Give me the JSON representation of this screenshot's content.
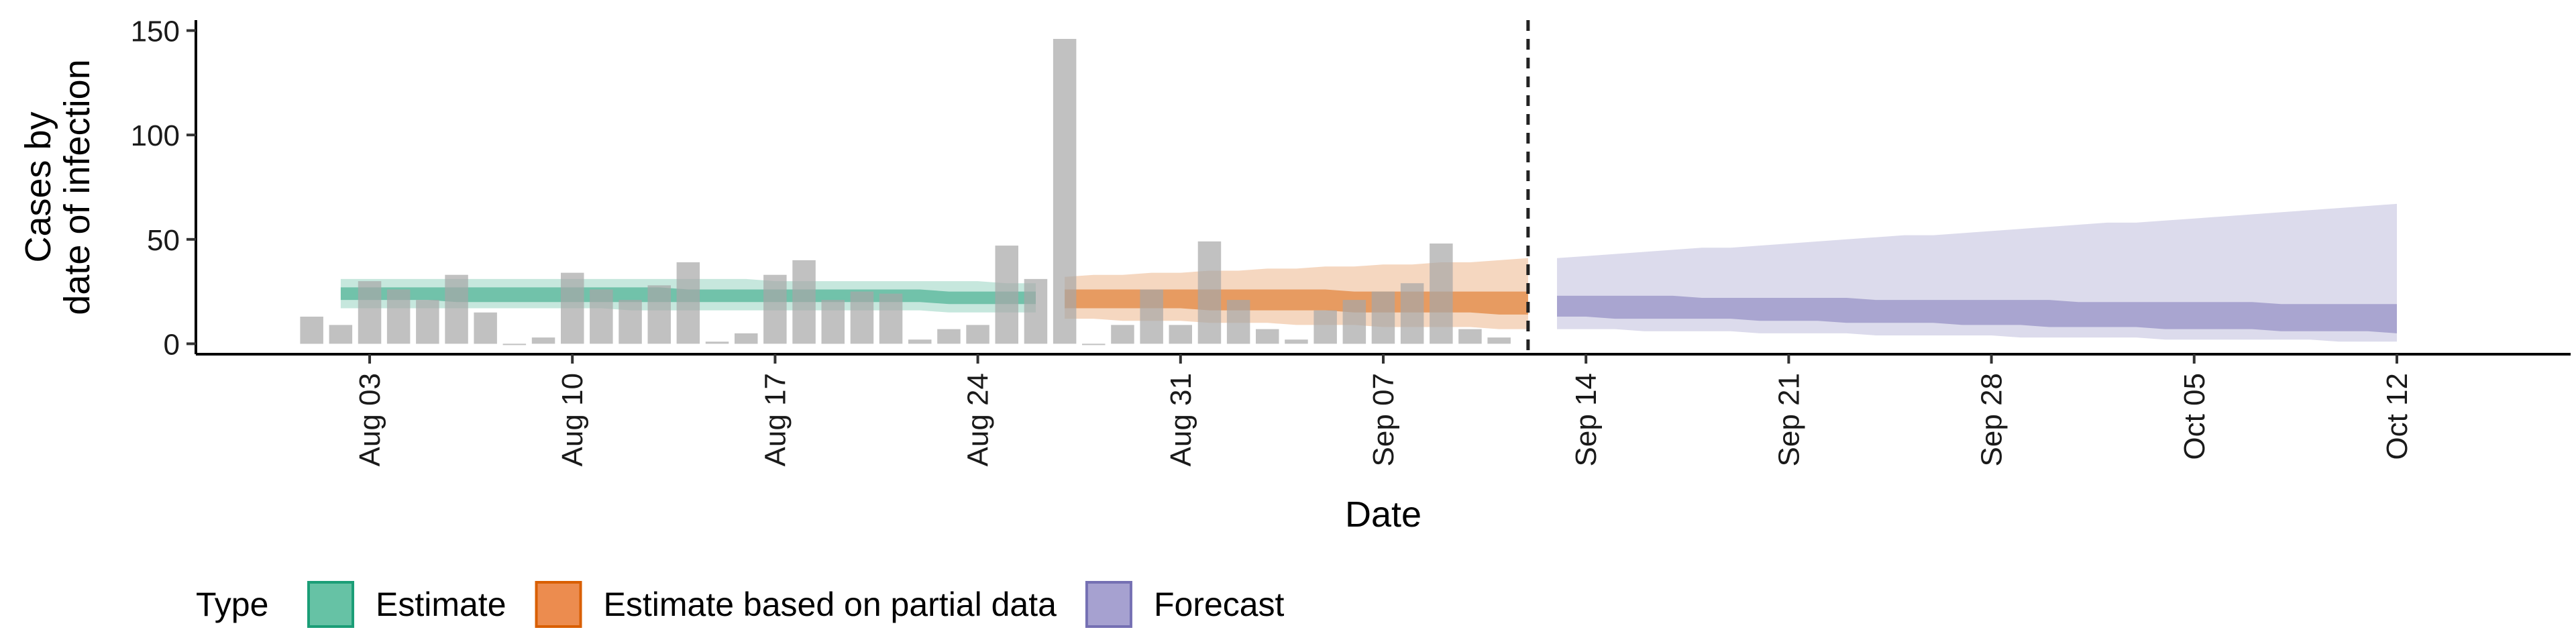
{
  "chart_data": {
    "type": "bar",
    "xlabel": "Date",
    "ylabel": [
      "Cases by",
      "date of infection"
    ],
    "ylim": [
      -5,
      155
    ],
    "x_domain": [
      "2020-07-28",
      "2020-10-18"
    ],
    "yticks": [
      0,
      50,
      100,
      150
    ],
    "xticks": [
      {
        "date": "2020-08-03",
        "label": "Aug 03"
      },
      {
        "date": "2020-08-10",
        "label": "Aug 10"
      },
      {
        "date": "2020-08-17",
        "label": "Aug 17"
      },
      {
        "date": "2020-08-24",
        "label": "Aug 24"
      },
      {
        "date": "2020-08-31",
        "label": "Aug 31"
      },
      {
        "date": "2020-09-07",
        "label": "Sep 07"
      },
      {
        "date": "2020-09-14",
        "label": "Sep 14"
      },
      {
        "date": "2020-09-21",
        "label": "Sep 21"
      },
      {
        "date": "2020-09-28",
        "label": "Sep 28"
      },
      {
        "date": "2020-10-05",
        "label": "Oct 05"
      },
      {
        "date": "2020-10-12",
        "label": "Oct 12"
      }
    ],
    "observed_cases": {
      "start_date": "2020-08-01",
      "values": [
        13,
        9,
        30,
        26,
        21,
        33,
        15,
        0,
        3,
        34,
        26,
        21,
        28,
        39,
        1,
        5,
        33,
        40,
        21,
        25,
        24,
        2,
        7,
        9,
        47,
        31,
        146,
        0,
        9,
        26,
        9,
        49,
        21,
        7,
        2,
        16,
        21,
        25,
        29,
        48,
        7,
        3
      ]
    },
    "forecast_start_line": "2020-09-12",
    "grid": false,
    "legend": {
      "position": "bottom",
      "title": "Type",
      "items": [
        {
          "label": "Estimate",
          "fill": "#66c2a5",
          "stroke": "#1b9e77"
        },
        {
          "label": "Estimate based on partial data",
          "fill": "#ec8c4f",
          "stroke": "#d95f02"
        },
        {
          "label": "Forecast",
          "fill": "#a6a1d0",
          "stroke": "#7570b3"
        }
      ]
    },
    "series": [
      {
        "name": "Estimate",
        "color": "#1b9e77",
        "start_date": "2020-08-02",
        "end_date": "2020-08-26",
        "inner_lower": [
          21,
          21,
          21,
          21,
          20,
          20,
          20,
          20,
          20,
          20,
          20,
          20,
          20,
          20,
          20,
          20,
          20,
          20,
          20,
          20,
          20,
          19,
          19,
          19,
          19
        ],
        "inner_upper": [
          27,
          27,
          27,
          27,
          27,
          27,
          27,
          27,
          27,
          27,
          27,
          27,
          26,
          26,
          26,
          26,
          26,
          26,
          26,
          26,
          26,
          25,
          25,
          25,
          25
        ],
        "outer_lower": [
          17,
          17,
          17,
          17,
          17,
          17,
          17,
          17,
          17,
          17,
          16,
          16,
          16,
          16,
          16,
          16,
          16,
          16,
          16,
          16,
          16,
          15,
          15,
          15,
          15
        ],
        "outer_upper": [
          31,
          31,
          31,
          31,
          31,
          31,
          31,
          31,
          31,
          31,
          31,
          31,
          31,
          31,
          31,
          30,
          30,
          30,
          30,
          30,
          30,
          30,
          30,
          29,
          29
        ]
      },
      {
        "name": "Estimate based on partial data",
        "color": "#d95f02",
        "start_date": "2020-08-27",
        "end_date": "2020-09-12",
        "inner_lower": [
          17,
          17,
          17,
          17,
          17,
          16,
          16,
          16,
          16,
          16,
          15,
          15,
          15,
          15,
          15,
          14,
          14
        ],
        "inner_upper": [
          26,
          26,
          26,
          26,
          26,
          26,
          26,
          26,
          26,
          26,
          25,
          25,
          25,
          25,
          25,
          25,
          25
        ],
        "outer_lower": [
          12,
          12,
          11,
          11,
          11,
          10,
          10,
          10,
          9,
          9,
          9,
          8,
          8,
          8,
          8,
          7,
          7
        ],
        "outer_upper": [
          32,
          33,
          33,
          34,
          34,
          35,
          35,
          36,
          36,
          37,
          37,
          38,
          38,
          39,
          39,
          40,
          41
        ]
      },
      {
        "name": "Forecast",
        "color": "#7570b3",
        "start_date": "2020-09-13",
        "end_date": "2020-10-12",
        "inner_lower": [
          13,
          13,
          12,
          12,
          12,
          12,
          12,
          11,
          11,
          11,
          10,
          10,
          10,
          10,
          9,
          9,
          9,
          8,
          8,
          8,
          8,
          7,
          7,
          7,
          7,
          6,
          6,
          6,
          6,
          5
        ],
        "inner_upper": [
          23,
          23,
          23,
          23,
          23,
          22,
          22,
          22,
          22,
          22,
          22,
          21,
          21,
          21,
          21,
          21,
          21,
          21,
          20,
          20,
          20,
          20,
          20,
          20,
          20,
          19,
          19,
          19,
          19,
          19
        ],
        "outer_lower": [
          7,
          7,
          7,
          6,
          6,
          6,
          6,
          5,
          5,
          5,
          5,
          4,
          4,
          4,
          4,
          4,
          3,
          3,
          3,
          3,
          3,
          2,
          2,
          2,
          2,
          2,
          2,
          1,
          1,
          1
        ],
        "outer_upper": [
          41,
          42,
          43,
          44,
          45,
          46,
          46,
          47,
          48,
          49,
          50,
          51,
          52,
          52,
          53,
          54,
          55,
          56,
          57,
          58,
          58,
          59,
          60,
          61,
          62,
          63,
          64,
          65,
          66,
          67
        ]
      }
    ]
  }
}
